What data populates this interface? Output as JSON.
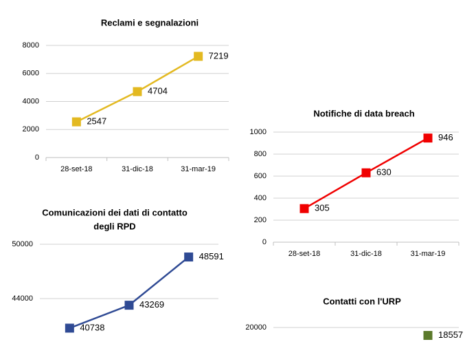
{
  "chart_data": [
    {
      "type": "line",
      "title": "Reclami e segnalazioni",
      "categories": [
        "28-set-18",
        "31-dic-18",
        "31-mar-19"
      ],
      "values": [
        2547,
        4704,
        7219
      ],
      "color": "#e3b921",
      "ylim": [
        0,
        8000
      ],
      "yticks": [
        0,
        2000,
        4000,
        6000,
        8000
      ],
      "grid": true
    },
    {
      "type": "line",
      "title": "Notifiche di data breach",
      "categories": [
        "28-set-18",
        "31-dic-18",
        "31-mar-19"
      ],
      "values": [
        305,
        630,
        946
      ],
      "color": "#f00000",
      "ylim": [
        0,
        1000
      ],
      "yticks": [
        0,
        200,
        400,
        600,
        800,
        1000
      ],
      "grid": true
    },
    {
      "type": "line",
      "title": [
        "Comunicazioni dei dati di contatto",
        "degli RPD"
      ],
      "categories": [
        null,
        null,
        null
      ],
      "values": [
        40738,
        43269,
        48591
      ],
      "color": "#2f4a94",
      "ylim": [
        38000,
        50000
      ],
      "yticks": [
        44000,
        50000
      ],
      "grid": true
    },
    {
      "type": "line",
      "title": "Contatti con l'URP",
      "categories": [
        null,
        null,
        null
      ],
      "values": [
        null,
        null,
        18557
      ],
      "color": "#5b7a2b",
      "ylim": [
        0,
        20000
      ],
      "yticks": [
        20000
      ],
      "grid": true
    }
  ]
}
